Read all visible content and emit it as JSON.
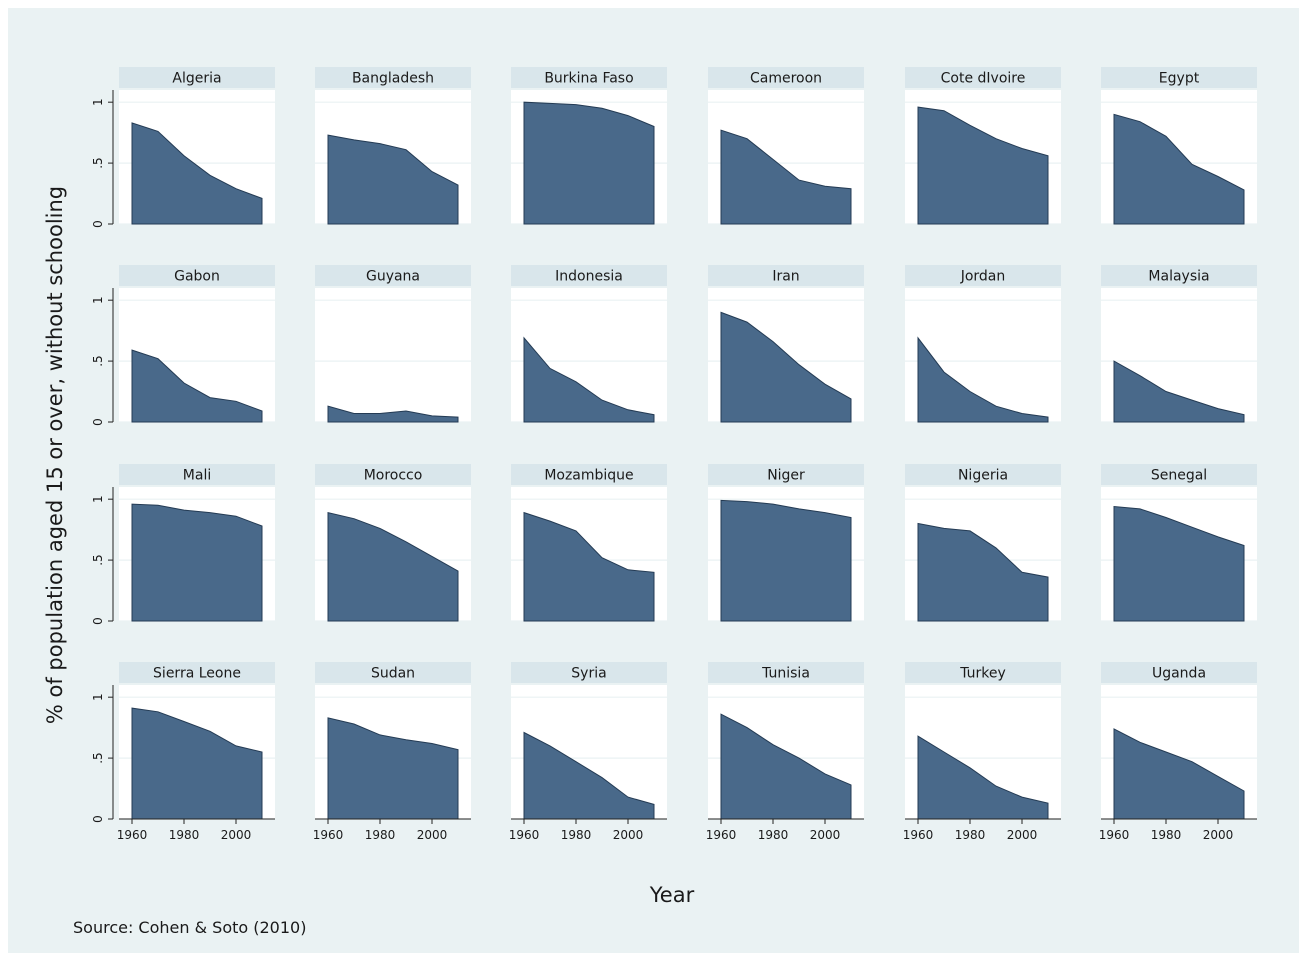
{
  "chart_data": {
    "type": "area",
    "title": "",
    "xlabel": "Year",
    "ylabel": "% of population aged 15 or over, without schooling",
    "source": "Source: Cohen & Soto (2010)",
    "x": [
      1960,
      1970,
      1980,
      1990,
      2000,
      2010
    ],
    "xlim": [
      1955,
      2015
    ],
    "ylim": [
      0,
      1.1
    ],
    "xticks": [
      1960,
      1980,
      2000
    ],
    "xtick_labels": [
      "1960",
      "1980",
      "2000"
    ],
    "yticks": [
      0,
      0.5,
      1
    ],
    "ytick_labels": [
      "0",
      ".5",
      "1"
    ],
    "grid": true,
    "colors": {
      "area": "#49698a",
      "outer_background": "#eaf2f3",
      "panel_header": "#d9e6eb",
      "grid": "#eaf2f3"
    },
    "series": [
      {
        "name": "Algeria",
        "values": [
          0.83,
          0.76,
          0.56,
          0.4,
          0.29,
          0.21
        ]
      },
      {
        "name": "Bangladesh",
        "values": [
          0.73,
          0.69,
          0.66,
          0.61,
          0.43,
          0.32
        ]
      },
      {
        "name": "Burkina Faso",
        "values": [
          1.0,
          0.99,
          0.98,
          0.95,
          0.89,
          0.8
        ]
      },
      {
        "name": "Cameroon",
        "values": [
          0.77,
          0.7,
          0.53,
          0.36,
          0.31,
          0.29
        ]
      },
      {
        "name": "Cote dIvoire",
        "values": [
          0.96,
          0.93,
          0.81,
          0.7,
          0.62,
          0.56
        ]
      },
      {
        "name": "Egypt",
        "values": [
          0.9,
          0.84,
          0.72,
          0.49,
          0.39,
          0.28
        ]
      },
      {
        "name": "Gabon",
        "values": [
          0.59,
          0.52,
          0.32,
          0.2,
          0.17,
          0.09
        ]
      },
      {
        "name": "Guyana",
        "values": [
          0.13,
          0.07,
          0.07,
          0.09,
          0.05,
          0.04
        ]
      },
      {
        "name": "Indonesia",
        "values": [
          0.69,
          0.44,
          0.33,
          0.18,
          0.1,
          0.06
        ]
      },
      {
        "name": "Iran",
        "values": [
          0.9,
          0.82,
          0.66,
          0.47,
          0.31,
          0.19
        ]
      },
      {
        "name": "Jordan",
        "values": [
          0.69,
          0.41,
          0.25,
          0.13,
          0.07,
          0.04
        ]
      },
      {
        "name": "Malaysia",
        "values": [
          0.5,
          0.38,
          0.25,
          0.18,
          0.11,
          0.06
        ]
      },
      {
        "name": "Mali",
        "values": [
          0.96,
          0.95,
          0.91,
          0.89,
          0.86,
          0.78
        ]
      },
      {
        "name": "Morocco",
        "values": [
          0.89,
          0.84,
          0.76,
          0.65,
          0.53,
          0.41
        ]
      },
      {
        "name": "Mozambique",
        "values": [
          0.89,
          0.82,
          0.74,
          0.52,
          0.42,
          0.4
        ]
      },
      {
        "name": "Niger",
        "values": [
          0.99,
          0.98,
          0.96,
          0.92,
          0.89,
          0.85
        ]
      },
      {
        "name": "Nigeria",
        "values": [
          0.8,
          0.76,
          0.74,
          0.6,
          0.4,
          0.36
        ]
      },
      {
        "name": "Senegal",
        "values": [
          0.94,
          0.92,
          0.85,
          0.77,
          0.69,
          0.62
        ]
      },
      {
        "name": "Sierra Leone",
        "values": [
          0.91,
          0.88,
          0.8,
          0.72,
          0.6,
          0.55
        ]
      },
      {
        "name": "Sudan",
        "values": [
          0.83,
          0.78,
          0.69,
          0.65,
          0.62,
          0.57
        ]
      },
      {
        "name": "Syria",
        "values": [
          0.71,
          0.6,
          0.47,
          0.34,
          0.18,
          0.12
        ]
      },
      {
        "name": "Tunisia",
        "values": [
          0.86,
          0.75,
          0.61,
          0.5,
          0.37,
          0.28
        ]
      },
      {
        "name": "Turkey",
        "values": [
          0.68,
          0.55,
          0.42,
          0.27,
          0.18,
          0.13
        ]
      },
      {
        "name": "Uganda",
        "values": [
          0.74,
          0.63,
          0.55,
          0.47,
          0.35,
          0.23
        ]
      }
    ]
  }
}
